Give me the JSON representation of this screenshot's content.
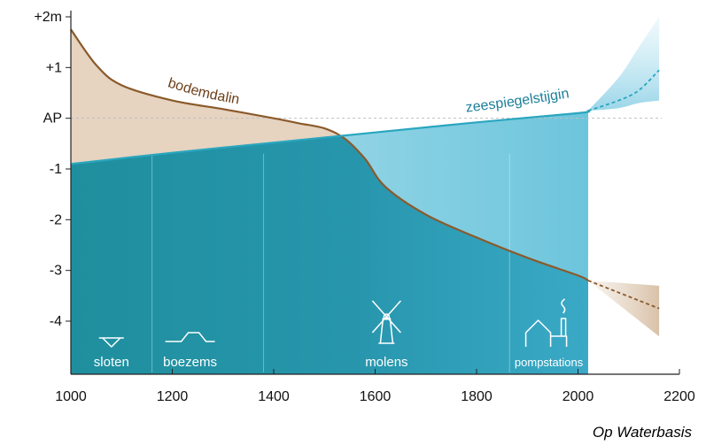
{
  "credit": "Op Waterbasis",
  "colors": {
    "soil_line": "#8b5a2b",
    "soil_fill": "#e6d3c0",
    "sea_line": "#2aa6bf",
    "water_dark": "#1f8f9e",
    "water_light": "#a8dcec",
    "ap_line": "#bfbfbf"
  },
  "icons": [
    "sloten-icon",
    "boezems-icon",
    "molens-icon",
    "pompstations-icon"
  ],
  "chart_data": {
    "type": "line",
    "title": "",
    "xlabel": "",
    "ylabel": "",
    "xlim": [
      1000,
      2200
    ],
    "ylim": [
      -4.7,
      2
    ],
    "x_ticks": [
      "1000",
      "1200",
      "1400",
      "1600",
      "1800",
      "2000",
      "2200"
    ],
    "x_tick_values": [
      1000,
      1200,
      1400,
      1600,
      1800,
      2000,
      2200
    ],
    "y_ticks": [
      "+2m",
      "+1",
      "AP",
      "-1",
      "-2",
      "-3",
      "-4"
    ],
    "y_tick_values": [
      2,
      1,
      0,
      -1,
      -2,
      -3,
      -4
    ],
    "reference_line": {
      "label": "AP",
      "y": 0
    },
    "series": [
      {
        "name": "bodemdaling",
        "x": [
          1000,
          1050,
          1100,
          1200,
          1300,
          1400,
          1450,
          1500,
          1540,
          1580,
          1620,
          1700,
          1800,
          1900,
          2000,
          2020
        ],
        "y": [
          1.75,
          1.05,
          0.65,
          0.35,
          0.18,
          0.0,
          -0.1,
          -0.2,
          -0.4,
          -0.8,
          -1.35,
          -1.9,
          -2.35,
          -2.75,
          -3.1,
          -3.2
        ],
        "projection": {
          "x": [
            2020,
            2160
          ],
          "y": [
            -3.2,
            -3.75
          ],
          "band_upper": [
            -3.2,
            -3.3
          ],
          "band_lower": [
            -3.2,
            -4.3
          ]
        }
      },
      {
        "name": "zeespiegelstijging",
        "x": [
          1000,
          1200,
          1400,
          1600,
          1800,
          2000,
          2020
        ],
        "y": [
          -0.9,
          -0.68,
          -0.48,
          -0.28,
          -0.08,
          0.1,
          0.15
        ],
        "projection": {
          "x": [
            2020,
            2080,
            2120,
            2160
          ],
          "y": [
            0.15,
            0.35,
            0.55,
            0.95
          ],
          "band_upper": [
            0.15,
            0.8,
            1.4,
            2.0
          ],
          "band_lower": [
            0.15,
            0.2,
            0.3,
            0.35
          ]
        }
      }
    ],
    "eras": [
      {
        "label": "sloten",
        "x_start": 1000,
        "x_end": 1160,
        "icon": "sloten-icon"
      },
      {
        "label": "boezems",
        "x_start": 1160,
        "x_end": 1380,
        "icon": "boezems-icon"
      },
      {
        "label": "molens",
        "x_start": 1380,
        "x_end": 1865,
        "icon": "molens-icon"
      },
      {
        "label": "pompstations",
        "x_start": 1865,
        "x_end": 2020,
        "icon": "pompstations-icon"
      }
    ]
  }
}
